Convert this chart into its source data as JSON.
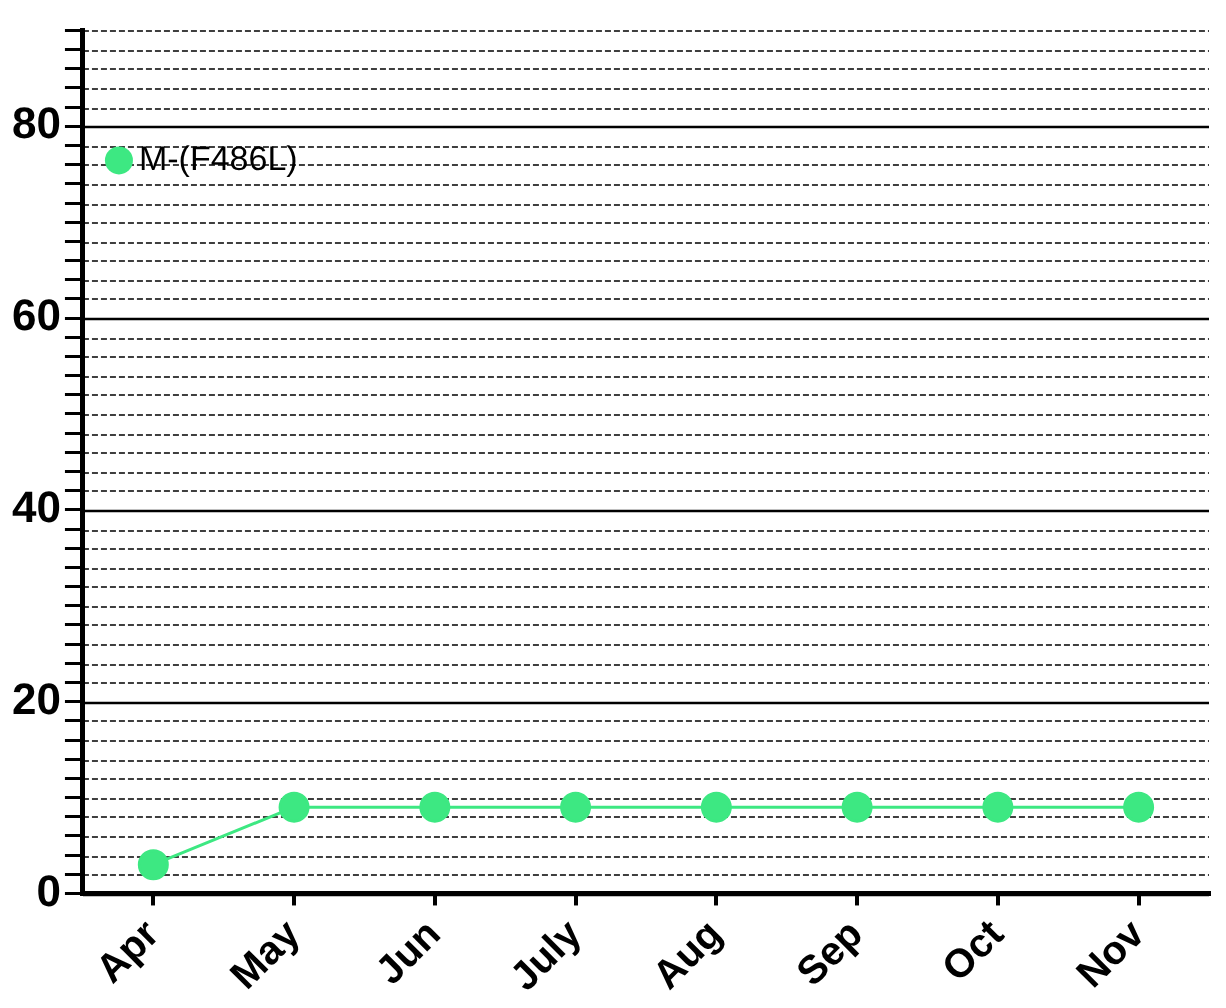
{
  "chart_data": {
    "type": "line",
    "categories": [
      "Apr",
      "May",
      "Jun",
      "July",
      "Aug",
      "Sep",
      "Oct",
      "Nov"
    ],
    "series": [
      {
        "name": "M-(F486L)",
        "color": "#3de882",
        "values": [
          3,
          9,
          9,
          9,
          9,
          9,
          9,
          9
        ]
      }
    ],
    "ylim": [
      0,
      90
    ],
    "yticks": [
      0,
      {
        "value": 2,
        "label": null
      },
      {
        "value": 4,
        "label": null
      },
      {
        "value": 6,
        "label": null
      },
      {
        "value": 8,
        "label": null
      },
      {
        "value": 10,
        "label": null
      },
      {
        "value": 12,
        "label": null
      },
      {
        "value": 14,
        "label": null
      },
      {
        "value": 16,
        "label": null
      },
      {
        "value": 18,
        "label": null
      },
      20,
      {
        "value": 22,
        "label": null
      },
      {
        "value": 24,
        "label": null
      },
      {
        "value": 26,
        "label": null
      },
      {
        "value": 28,
        "label": null
      },
      {
        "value": 30,
        "label": null
      },
      {
        "value": 32,
        "label": null
      },
      {
        "value": 34,
        "label": null
      },
      {
        "value": 36,
        "label": null
      },
      {
        "value": 38,
        "label": null
      },
      40,
      {
        "value": 42,
        "label": null
      },
      {
        "value": 44,
        "label": null
      },
      {
        "value": 46,
        "label": null
      },
      {
        "value": 48,
        "label": null
      },
      {
        "value": 50,
        "label": null
      },
      {
        "value": 52,
        "label": null
      },
      {
        "value": 54,
        "label": null
      },
      {
        "value": 56,
        "label": null
      },
      {
        "value": 58,
        "label": null
      },
      60,
      {
        "value": 62,
        "label": null
      },
      {
        "value": 64,
        "label": null
      },
      {
        "value": 66,
        "label": null
      },
      {
        "value": 68,
        "label": null
      },
      {
        "value": 70,
        "label": null
      },
      {
        "value": 72,
        "label": null
      },
      {
        "value": 74,
        "label": null
      },
      {
        "value": 76,
        "label": null
      },
      {
        "value": 78,
        "label": null
      },
      80,
      {
        "value": 82,
        "label": null
      },
      {
        "value": 84,
        "label": null
      },
      {
        "value": 86,
        "label": null
      },
      {
        "value": 88,
        "label": null
      },
      {
        "value": 90,
        "label": null
      }
    ],
    "grid": "y",
    "legend": "top left",
    "marker": "circle",
    "line_style": "solid"
  }
}
